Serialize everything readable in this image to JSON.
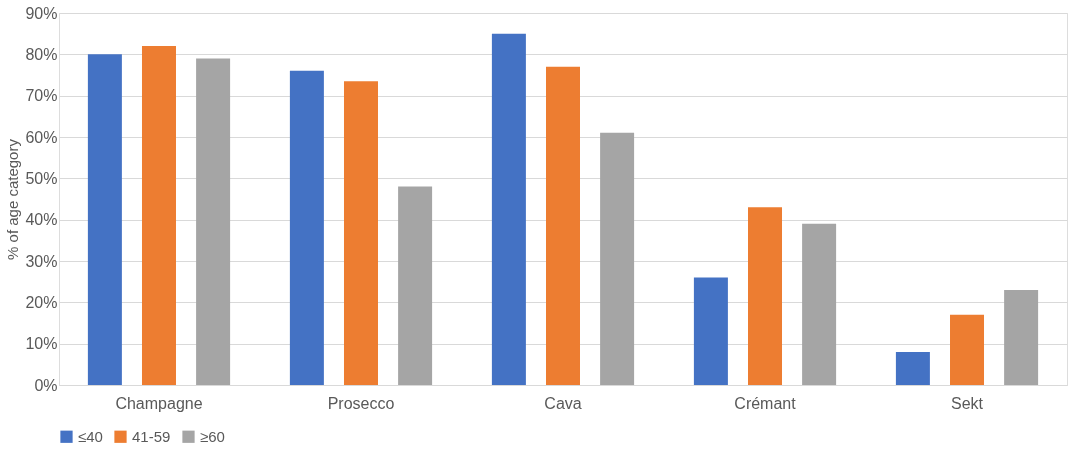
{
  "chart_data": {
    "type": "bar",
    "ylabel": "% of age category",
    "categories": [
      "Champagne",
      "Prosecco",
      "Cava",
      "Crémant",
      "Sekt"
    ],
    "series": [
      {
        "name": "≤40",
        "color": "#4472c4",
        "values": [
          80,
          76,
          85,
          26,
          8
        ]
      },
      {
        "name": "41-59",
        "color": "#ed7d31",
        "values": [
          82,
          73.5,
          77,
          43,
          17
        ]
      },
      {
        "name": "≥60",
        "color": "#a5a5a5",
        "values": [
          79,
          48,
          61,
          39,
          23
        ]
      }
    ],
    "ylim": [
      0,
      90
    ],
    "yticks": [
      {
        "value": 0,
        "label": "0%"
      },
      {
        "value": 10,
        "label": "10%"
      },
      {
        "value": 20,
        "label": "20%"
      },
      {
        "value": 30,
        "label": "30%"
      },
      {
        "value": 40,
        "label": "40%"
      },
      {
        "value": 50,
        "label": "50%"
      },
      {
        "value": 60,
        "label": "60%"
      },
      {
        "value": 70,
        "label": "70%"
      },
      {
        "value": 80,
        "label": "80%"
      },
      {
        "value": 90,
        "label": "90%"
      }
    ],
    "grid": "y",
    "legend": "bottom"
  }
}
